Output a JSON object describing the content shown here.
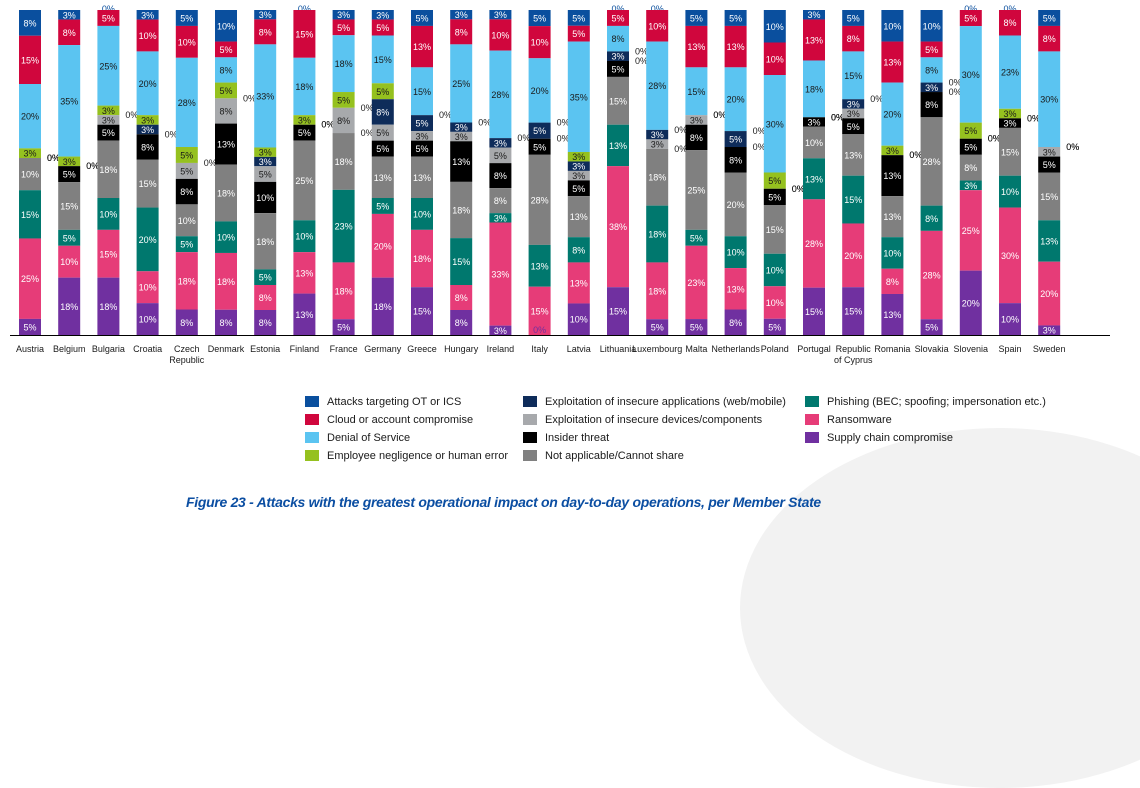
{
  "chart_data": {
    "type": "bar",
    "stacked": true,
    "normalized": true,
    "title": "Figure 23 - Attacks with the greatest operational impact on day-to-day operations, per Member State",
    "xlabel": "",
    "ylabel": "",
    "ylim": [
      0,
      100
    ],
    "value_suffix": "%",
    "legend_position": "bottom",
    "grid": false,
    "categories": [
      "Austria",
      "Belgium",
      "Bulgaria",
      "Croatia",
      "Czech Republic",
      "Denmark",
      "Estonia",
      "Finland",
      "France",
      "Germany",
      "Greece",
      "Hungary",
      "Ireland",
      "Italy",
      "Latvia",
      "Lithuania",
      "Luxembourg",
      "Malta",
      "Netherlands",
      "Poland",
      "Portugal",
      "Republic of Cyprus",
      "Romania",
      "Slovakia",
      "Slovenia",
      "Spain",
      "Sweden"
    ],
    "series": [
      {
        "name": "Attacks targeting OT or ICS",
        "color": "#0a4f9e",
        "values": [
          8,
          3,
          0,
          3,
          5,
          10,
          3,
          0,
          3,
          3,
          5,
          3,
          3,
          5,
          5,
          0,
          0,
          5,
          5,
          10,
          3,
          5,
          10,
          10,
          0,
          0,
          5
        ]
      },
      {
        "name": "Cloud or account compromise",
        "color": "#d0063d",
        "values": [
          15,
          8,
          5,
          10,
          10,
          5,
          8,
          15,
          5,
          5,
          13,
          8,
          10,
          10,
          5,
          5,
          10,
          13,
          13,
          10,
          13,
          8,
          13,
          5,
          5,
          8,
          8
        ]
      },
      {
        "name": "Denial of Service",
        "color": "#5bc4f1",
        "values": [
          20,
          35,
          25,
          20,
          28,
          8,
          33,
          18,
          18,
          15,
          15,
          25,
          28,
          20,
          35,
          8,
          28,
          15,
          20,
          30,
          18,
          15,
          20,
          8,
          30,
          23,
          30
        ]
      },
      {
        "name": "Employee negligence or human error",
        "color": "#95c11f",
        "values": [
          3,
          3,
          3,
          3,
          5,
          5,
          3,
          3,
          5,
          5,
          0,
          0,
          0,
          0,
          3,
          0,
          0,
          0,
          0,
          5,
          0,
          0,
          3,
          0,
          5,
          3,
          0
        ]
      },
      {
        "name": "Exploitation of insecure applications (web/mobile)",
        "color": "#0e2c5a",
        "values": [
          0,
          0,
          0,
          3,
          0,
          0,
          3,
          0,
          0,
          8,
          5,
          3,
          3,
          5,
          3,
          3,
          3,
          0,
          5,
          0,
          0,
          3,
          0,
          3,
          0,
          0,
          0
        ]
      },
      {
        "name": "Exploitation of insecure devices/components",
        "color": "#a7a9ac",
        "values": [
          0,
          0,
          3,
          0,
          5,
          8,
          5,
          0,
          8,
          5,
          3,
          3,
          5,
          0,
          3,
          0,
          3,
          3,
          0,
          0,
          0,
          3,
          0,
          0,
          0,
          0,
          3
        ]
      },
      {
        "name": "Insider threat",
        "color": "#000000",
        "values": [
          0,
          5,
          5,
          8,
          8,
          13,
          10,
          5,
          0,
          5,
          5,
          13,
          8,
          5,
          5,
          5,
          0,
          8,
          8,
          5,
          3,
          5,
          13,
          8,
          5,
          3,
          5
        ]
      },
      {
        "name": "Not applicable/Cannot share",
        "color": "#808080",
        "values": [
          10,
          15,
          18,
          15,
          10,
          18,
          18,
          25,
          18,
          13,
          13,
          18,
          8,
          28,
          13,
          15,
          18,
          25,
          20,
          15,
          10,
          13,
          13,
          28,
          8,
          15,
          15
        ]
      },
      {
        "name": "Phishing (BEC; spoofing; impersonation etc.)",
        "color": "#00786e",
        "values": [
          15,
          5,
          10,
          20,
          5,
          10,
          5,
          10,
          23,
          5,
          10,
          15,
          3,
          13,
          8,
          13,
          18,
          5,
          10,
          10,
          13,
          15,
          10,
          8,
          3,
          10,
          13
        ]
      },
      {
        "name": "Ransomware",
        "color": "#e63c78",
        "values": [
          25,
          10,
          15,
          10,
          18,
          18,
          8,
          13,
          18,
          20,
          18,
          8,
          33,
          15,
          13,
          38,
          18,
          23,
          13,
          10,
          28,
          20,
          8,
          28,
          25,
          30,
          20
        ]
      },
      {
        "name": "Supply chain compromise",
        "color": "#7030a0",
        "values": [
          5,
          18,
          18,
          10,
          8,
          8,
          8,
          13,
          5,
          18,
          15,
          8,
          3,
          0,
          10,
          15,
          5,
          5,
          8,
          5,
          15,
          15,
          13,
          5,
          20,
          10,
          3
        ]
      }
    ]
  },
  "caption": "Figure 23 - Attacks with the greatest operational impact on day-to-day operations, per Member State"
}
